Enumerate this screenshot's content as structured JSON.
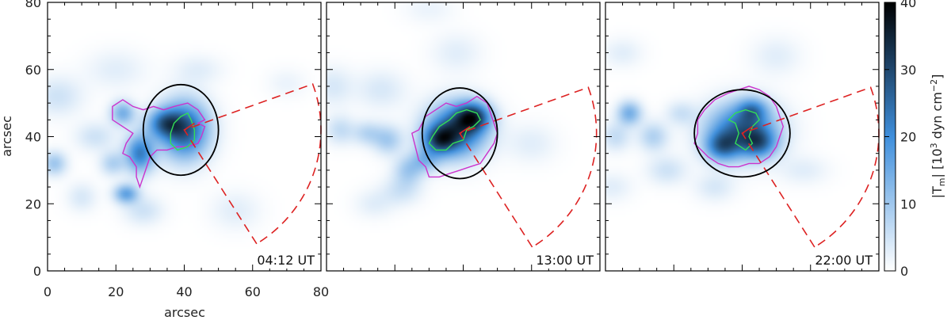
{
  "chart_data": {
    "type": "heatmap",
    "xlabel": "arcsec",
    "ylabel": "arcsec",
    "xlim": [
      0,
      80
    ],
    "ylim": [
      0,
      80
    ],
    "x_ticks": [
      "0",
      "20",
      "40",
      "60",
      "80"
    ],
    "y_ticks": [
      "0",
      "20",
      "40",
      "60",
      "80"
    ],
    "colorbar": {
      "label": "|T_m| [10^3 dyn cm^-2]",
      "label_parts": {
        "main": "|T",
        "sub": "m",
        "after": "| [10",
        "sup1": "3",
        "middle": " dyn cm",
        "sup2": "−2",
        "end": "]"
      },
      "range": [
        0,
        40
      ],
      "ticks": [
        "0",
        "10",
        "20",
        "30",
        "40"
      ],
      "colormap_low": "#ffffff",
      "colormap_mid": "#3f8fdc",
      "colormap_high": "#000000"
    },
    "contour_colors": {
      "outer": "#cc33cc",
      "inner": "#33dd55",
      "circle": "#000000",
      "sector": "#dd2222"
    },
    "panels": [
      {
        "time_label": "04:12 UT",
        "circle": {
          "center": [
            39,
            42
          ],
          "radius_x": 11,
          "radius_y": 13.5
        },
        "blobs": [
          {
            "x": 40,
            "y": 42,
            "sx": 5,
            "sy": 6,
            "v": 28
          },
          {
            "x": 34,
            "y": 44,
            "sx": 3.5,
            "sy": 3,
            "v": 18
          },
          {
            "x": 27,
            "y": 35,
            "sx": 3,
            "sy": 4,
            "v": 22
          },
          {
            "x": 22,
            "y": 47,
            "sx": 2.5,
            "sy": 2.5,
            "v": 14
          },
          {
            "x": 23,
            "y": 23,
            "sx": 2.5,
            "sy": 2,
            "v": 16
          },
          {
            "x": 19,
            "y": 32,
            "sx": 2.5,
            "sy": 2.5,
            "v": 8
          },
          {
            "x": 2,
            "y": 32,
            "sx": 2.5,
            "sy": 2.5,
            "v": 10
          },
          {
            "x": 3,
            "y": 52,
            "sx": 5,
            "sy": 4,
            "v": 5
          },
          {
            "x": 14,
            "y": 40,
            "sx": 4,
            "sy": 3,
            "v": 5
          },
          {
            "x": 28,
            "y": 18,
            "sx": 4,
            "sy": 3,
            "v": 5
          },
          {
            "x": 10,
            "y": 22,
            "sx": 3,
            "sy": 3,
            "v": 4
          },
          {
            "x": 55,
            "y": 18,
            "sx": 5,
            "sy": 4,
            "v": 3
          },
          {
            "x": 20,
            "y": 60,
            "sx": 6,
            "sy": 4,
            "v": 3
          },
          {
            "x": 70,
            "y": 56,
            "sx": 4,
            "sy": 3,
            "v": 2
          },
          {
            "x": 44,
            "y": 60,
            "sx": 5,
            "sy": 3,
            "v": 3
          }
        ],
        "outer_contour": [
          [
            22,
            51
          ],
          [
            25,
            49
          ],
          [
            28,
            48
          ],
          [
            31,
            49
          ],
          [
            34,
            48
          ],
          [
            37,
            49
          ],
          [
            41,
            50
          ],
          [
            44,
            48
          ],
          [
            46,
            45
          ],
          [
            44,
            44
          ],
          [
            46,
            43
          ],
          [
            45,
            40
          ],
          [
            44,
            38
          ],
          [
            41,
            37
          ],
          [
            38,
            37
          ],
          [
            35,
            36
          ],
          [
            32,
            36
          ],
          [
            30,
            34
          ],
          [
            29,
            31
          ],
          [
            28,
            28
          ],
          [
            27,
            25
          ],
          [
            26,
            28
          ],
          [
            26,
            31
          ],
          [
            24,
            34
          ],
          [
            22,
            35
          ],
          [
            23,
            38
          ],
          [
            25,
            41
          ],
          [
            22,
            43
          ],
          [
            19,
            45
          ],
          [
            19,
            49
          ]
        ],
        "inner_contour": [
          [
            36,
            38
          ],
          [
            36,
            41
          ],
          [
            37,
            44
          ],
          [
            39,
            46
          ],
          [
            41,
            47
          ],
          [
            42,
            45
          ],
          [
            43,
            42
          ],
          [
            43,
            39
          ],
          [
            41,
            37
          ],
          [
            38,
            36
          ]
        ],
        "sector": {
          "vertex": [
            40,
            42
          ],
          "tick_end": [
            43,
            44
          ],
          "r": 40,
          "a1": 20,
          "a2": -58
        }
      },
      {
        "time_label": "13:00 UT",
        "circle": {
          "center": [
            39,
            41
          ],
          "radius_x": 11,
          "radius_y": 13.5
        },
        "blobs": [
          {
            "x": 38,
            "y": 42,
            "sx": 6,
            "sy": 5.5,
            "v": 28
          },
          {
            "x": 43,
            "y": 46,
            "sx": 3.5,
            "sy": 3,
            "v": 24
          },
          {
            "x": 33,
            "y": 39,
            "sx": 3.5,
            "sy": 3,
            "v": 20
          },
          {
            "x": 29,
            "y": 33,
            "sx": 3,
            "sy": 2.5,
            "v": 10
          },
          {
            "x": 24,
            "y": 30,
            "sx": 3,
            "sy": 3,
            "v": 9
          },
          {
            "x": 18,
            "y": 39,
            "sx": 3,
            "sy": 3,
            "v": 9
          },
          {
            "x": 12,
            "y": 41,
            "sx": 3,
            "sy": 2.5,
            "v": 7
          },
          {
            "x": 4,
            "y": 42,
            "sx": 3,
            "sy": 3,
            "v": 6
          },
          {
            "x": 2,
            "y": 55,
            "sx": 4,
            "sy": 4,
            "v": 4
          },
          {
            "x": 16,
            "y": 54,
            "sx": 5,
            "sy": 4,
            "v": 4
          },
          {
            "x": 22,
            "y": 24,
            "sx": 4,
            "sy": 3,
            "v": 5
          },
          {
            "x": 38,
            "y": 65,
            "sx": 5,
            "sy": 4,
            "v": 3
          },
          {
            "x": 60,
            "y": 38,
            "sx": 5,
            "sy": 4,
            "v": 3
          },
          {
            "x": 14,
            "y": 20,
            "sx": 4,
            "sy": 3,
            "v": 3
          },
          {
            "x": 30,
            "y": 78,
            "sx": 5,
            "sy": 3,
            "v": 2
          }
        ],
        "outer_contour": [
          [
            27,
            42
          ],
          [
            29,
            46
          ],
          [
            32,
            48
          ],
          [
            35,
            50
          ],
          [
            38,
            49
          ],
          [
            41,
            50
          ],
          [
            44,
            52
          ],
          [
            47,
            50
          ],
          [
            48,
            47
          ],
          [
            49,
            44
          ],
          [
            50,
            41
          ],
          [
            49,
            38
          ],
          [
            47,
            35
          ],
          [
            45,
            32
          ],
          [
            42,
            31
          ],
          [
            39,
            30
          ],
          [
            36,
            29
          ],
          [
            33,
            28
          ],
          [
            30,
            28
          ],
          [
            29,
            31
          ],
          [
            27,
            33
          ],
          [
            26,
            37
          ],
          [
            25,
            41
          ]
        ],
        "inner_contour": [
          [
            31,
            40
          ],
          [
            33,
            43
          ],
          [
            36,
            45
          ],
          [
            38,
            47
          ],
          [
            41,
            48
          ],
          [
            44,
            47
          ],
          [
            45,
            45
          ],
          [
            43,
            43
          ],
          [
            41,
            42
          ],
          [
            40,
            39
          ],
          [
            37,
            38
          ],
          [
            35,
            36
          ],
          [
            32,
            36
          ],
          [
            30,
            38
          ]
        ],
        "sector": {
          "vertex": [
            39,
            41
          ],
          "tick_end": [
            42,
            43
          ],
          "r": 40,
          "a1": 20,
          "a2": -58
        }
      },
      {
        "time_label": "22:00 UT",
        "circle": {
          "center": [
            40,
            41
          ],
          "radius_x": 14,
          "radius_y": 13
        },
        "blobs": [
          {
            "x": 40,
            "y": 42,
            "sx": 7,
            "sy": 5.5,
            "v": 26
          },
          {
            "x": 34,
            "y": 37,
            "sx": 3.5,
            "sy": 3,
            "v": 18
          },
          {
            "x": 45,
            "y": 38,
            "sx": 3.5,
            "sy": 3,
            "v": 16
          },
          {
            "x": 43,
            "y": 48,
            "sx": 3,
            "sy": 2.5,
            "v": 14
          },
          {
            "x": 7,
            "y": 47,
            "sx": 2.5,
            "sy": 2.5,
            "v": 14
          },
          {
            "x": 14,
            "y": 40,
            "sx": 3,
            "sy": 3,
            "v": 8
          },
          {
            "x": 3,
            "y": 40,
            "sx": 3,
            "sy": 3,
            "v": 6
          },
          {
            "x": 18,
            "y": 30,
            "sx": 4,
            "sy": 3,
            "v": 5
          },
          {
            "x": 22,
            "y": 47,
            "sx": 3,
            "sy": 2.5,
            "v": 5
          },
          {
            "x": 5,
            "y": 65,
            "sx": 4,
            "sy": 3,
            "v": 3
          },
          {
            "x": 32,
            "y": 25,
            "sx": 4,
            "sy": 3,
            "v": 4
          },
          {
            "x": 2,
            "y": 25,
            "sx": 4,
            "sy": 3,
            "v": 3
          },
          {
            "x": 50,
            "y": 64,
            "sx": 5,
            "sy": 4,
            "v": 3
          },
          {
            "x": 58,
            "y": 30,
            "sx": 5,
            "sy": 3,
            "v": 3
          }
        ],
        "outer_contour": [
          [
            27,
            45
          ],
          [
            29,
            48
          ],
          [
            32,
            51
          ],
          [
            36,
            53
          ],
          [
            39,
            54
          ],
          [
            42,
            55
          ],
          [
            45,
            54
          ],
          [
            48,
            52
          ],
          [
            50,
            49
          ],
          [
            51,
            46
          ],
          [
            52,
            43
          ],
          [
            51,
            40
          ],
          [
            50,
            37
          ],
          [
            48,
            34
          ],
          [
            45,
            32
          ],
          [
            42,
            32
          ],
          [
            39,
            31
          ],
          [
            36,
            31
          ],
          [
            33,
            32
          ],
          [
            30,
            34
          ],
          [
            28,
            36
          ],
          [
            26,
            38
          ],
          [
            27,
            41
          ]
        ],
        "inner_contour": [
          [
            38,
            38
          ],
          [
            39,
            41
          ],
          [
            38,
            44
          ],
          [
            36,
            45
          ],
          [
            38,
            47
          ],
          [
            41,
            48
          ],
          [
            44,
            47
          ],
          [
            45,
            45
          ],
          [
            43,
            43
          ],
          [
            42,
            40
          ],
          [
            43,
            38
          ],
          [
            41,
            36
          ]
        ],
        "sector": {
          "vertex": [
            40,
            41
          ],
          "tick_end": [
            43,
            43
          ],
          "r": 40,
          "a1": 20,
          "a2": -58
        }
      }
    ]
  }
}
